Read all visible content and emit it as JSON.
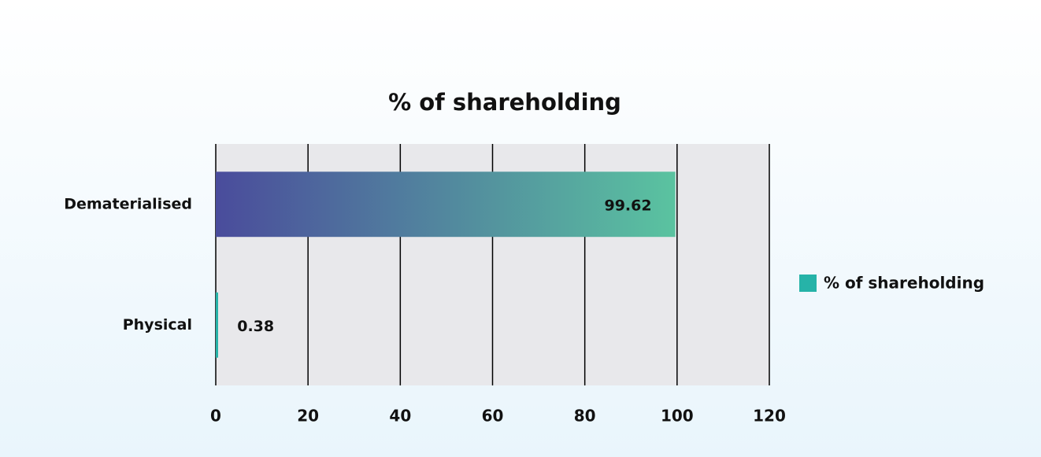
{
  "chart_data": {
    "type": "barh",
    "title": "% of shareholding",
    "categories": [
      "Dematerialised",
      "Physical"
    ],
    "series": [
      {
        "name": "% of shareholding",
        "color": "#26b3a8",
        "gradient": [
          "#4a4c9c",
          "#5ac3a0"
        ],
        "values": [
          99.62,
          0.38
        ]
      }
    ],
    "xlim": [
      0,
      120
    ],
    "xticks": [
      0,
      20,
      40,
      60,
      80,
      100,
      120
    ],
    "grid": true,
    "legend": "right"
  }
}
